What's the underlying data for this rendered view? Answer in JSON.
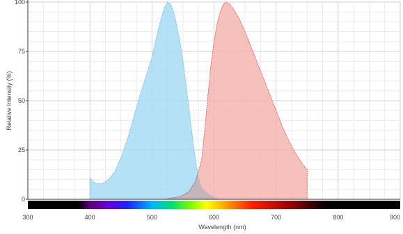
{
  "chart_data": {
    "type": "area",
    "xlabel": "Wavelength (nm)",
    "ylabel": "Relative Intensity (%)",
    "xlim": [
      300,
      900
    ],
    "ylim": [
      0,
      100
    ],
    "x_ticks": [
      "300",
      "400",
      "500",
      "600",
      "700",
      "800",
      "900"
    ],
    "y_ticks": [
      "0",
      "25",
      "50",
      "75",
      "100"
    ],
    "grid": true,
    "spectrum_bar": {
      "start_nm": 380,
      "end_nm": 780
    },
    "series": [
      {
        "color": "#a8dcf4",
        "edge_color": "#7cc4e8",
        "points": [
          [
            400,
            0
          ],
          [
            400,
            11
          ],
          [
            405,
            9
          ],
          [
            410,
            8
          ],
          [
            420,
            8
          ],
          [
            430,
            10
          ],
          [
            440,
            14
          ],
          [
            450,
            21
          ],
          [
            460,
            30
          ],
          [
            470,
            41
          ],
          [
            480,
            52
          ],
          [
            490,
            62
          ],
          [
            500,
            72
          ],
          [
            505,
            79
          ],
          [
            510,
            86
          ],
          [
            515,
            92
          ],
          [
            520,
            97
          ],
          [
            525,
            100
          ],
          [
            530,
            99
          ],
          [
            535,
            95
          ],
          [
            540,
            88
          ],
          [
            545,
            80
          ],
          [
            550,
            70
          ],
          [
            555,
            58
          ],
          [
            560,
            45
          ],
          [
            565,
            32
          ],
          [
            570,
            20
          ],
          [
            575,
            11
          ],
          [
            580,
            6
          ],
          [
            590,
            3
          ],
          [
            600,
            1
          ],
          [
            610,
            0
          ]
        ]
      },
      {
        "color": "#f5b5b0",
        "edge_color": "#dd6e66",
        "points": [
          [
            520,
            0
          ],
          [
            540,
            1
          ],
          [
            550,
            2
          ],
          [
            560,
            4
          ],
          [
            570,
            9
          ],
          [
            575,
            14
          ],
          [
            580,
            20
          ],
          [
            585,
            35
          ],
          [
            590,
            52
          ],
          [
            595,
            68
          ],
          [
            600,
            80
          ],
          [
            605,
            89
          ],
          [
            610,
            95
          ],
          [
            615,
            99
          ],
          [
            620,
            100
          ],
          [
            625,
            99
          ],
          [
            630,
            97
          ],
          [
            640,
            92
          ],
          [
            650,
            85
          ],
          [
            660,
            77
          ],
          [
            670,
            69
          ],
          [
            680,
            61
          ],
          [
            690,
            53
          ],
          [
            700,
            45
          ],
          [
            710,
            37
          ],
          [
            720,
            30
          ],
          [
            730,
            24
          ],
          [
            740,
            19
          ],
          [
            750,
            15
          ],
          [
            750,
            0
          ]
        ]
      }
    ],
    "overlap_color": "#c4b4bc"
  }
}
